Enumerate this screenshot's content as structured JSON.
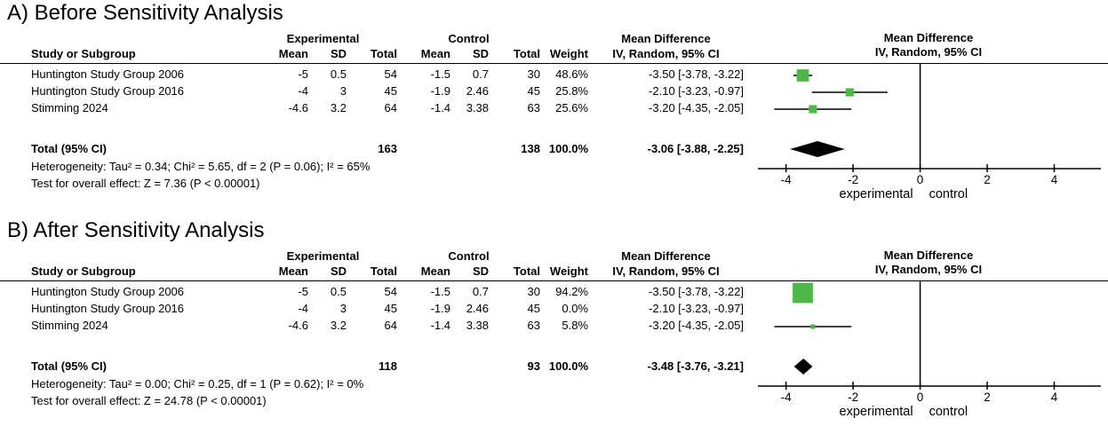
{
  "figure": {
    "panels": [
      {
        "title": "A) Before Sensitivity Analysis",
        "table": {
          "group_headers": {
            "experimental": "Experimental",
            "control": "Control",
            "mean_difference": "Mean Difference"
          },
          "columns": {
            "study": "Study or Subgroup",
            "mean": "Mean",
            "sd": "SD",
            "total": "Total",
            "mean2": "Mean",
            "sd2": "SD",
            "total2": "Total",
            "weight": "Weight",
            "ci": "IV, Random, 95% CI"
          },
          "rows": [
            {
              "study": "Huntington Study Group 2006",
              "exp_mean": "-5",
              "exp_sd": "0.5",
              "exp_total": "54",
              "ctl_mean": "-1.5",
              "ctl_sd": "0.7",
              "ctl_total": "30",
              "weight": "48.6%",
              "ci": "-3.50 [-3.78, -3.22]"
            },
            {
              "study": "Huntington Study Group 2016",
              "exp_mean": "-4",
              "exp_sd": "3",
              "exp_total": "45",
              "ctl_mean": "-1.9",
              "ctl_sd": "2.46",
              "ctl_total": "45",
              "weight": "25.8%",
              "ci": "-2.10 [-3.23, -0.97]"
            },
            {
              "study": "Stimming 2024",
              "exp_mean": "-4.6",
              "exp_sd": "3.2",
              "exp_total": "64",
              "ctl_mean": "-1.4",
              "ctl_sd": "3.38",
              "ctl_total": "63",
              "weight": "25.6%",
              "ci": "-3.20 [-4.35, -2.05]"
            }
          ],
          "total_row": {
            "label": "Total (95% CI)",
            "exp_total": "163",
            "ctl_total": "138",
            "weight": "100.0%",
            "ci": "-3.06 [-3.88, -2.25]"
          },
          "heterogeneity": "Heterogeneity: Tau² = 0.34; Chi² = 5.65, df = 2 (P = 0.06); I² = 65%",
          "overall_effect": "Test for overall effect: Z = 7.36 (P < 0.00001)"
        },
        "plot_header": {
          "line1": "Mean Difference",
          "line2": "IV, Random, 95% CI"
        }
      },
      {
        "title": "B) After Sensitivity Analysis",
        "table": {
          "group_headers": {
            "experimental": "Experimental",
            "control": "Control",
            "mean_difference": "Mean Difference"
          },
          "columns": {
            "study": "Study or Subgroup",
            "mean": "Mean",
            "sd": "SD",
            "total": "Total",
            "mean2": "Mean",
            "sd2": "SD",
            "total2": "Total",
            "weight": "Weight",
            "ci": "IV, Random, 95% CI"
          },
          "rows": [
            {
              "study": "Huntington Study Group 2006",
              "exp_mean": "-5",
              "exp_sd": "0.5",
              "exp_total": "54",
              "ctl_mean": "-1.5",
              "ctl_sd": "0.7",
              "ctl_total": "30",
              "weight": "94.2%",
              "ci": "-3.50 [-3.78, -3.22]"
            },
            {
              "study": "Huntington Study Group 2016",
              "exp_mean": "-4",
              "exp_sd": "3",
              "exp_total": "45",
              "ctl_mean": "-1.9",
              "ctl_sd": "2.46",
              "ctl_total": "45",
              "weight": "0.0%",
              "ci": "-2.10 [-3.23, -0.97]"
            },
            {
              "study": "Stimming 2024",
              "exp_mean": "-4.6",
              "exp_sd": "3.2",
              "exp_total": "64",
              "ctl_mean": "-1.4",
              "ctl_sd": "3.38",
              "ctl_total": "63",
              "weight": "5.8%",
              "ci": "-3.20 [-4.35, -2.05]"
            }
          ],
          "total_row": {
            "label": "Total (95% CI)",
            "exp_total": "118",
            "ctl_total": "93",
            "weight": "100.0%",
            "ci": "-3.48 [-3.76, -3.21]"
          },
          "heterogeneity": "Heterogeneity: Tau² = 0.00; Chi² = 0.25, df = 1 (P = 0.62); I² = 0%",
          "overall_effect": "Test for overall effect: Z = 24.78 (P < 0.00001)"
        },
        "plot_header": {
          "line1": "Mean Difference",
          "line2": "IV, Random, 95% CI"
        }
      }
    ]
  },
  "chart_data": [
    {
      "type": "forest",
      "panel": "A) Before Sensitivity Analysis",
      "effect_measure": "Mean Difference, IV, Random, 95% CI",
      "xticks": [
        -4,
        -2,
        0,
        2,
        4
      ],
      "xlim": [
        -5.05,
        5.55
      ],
      "axis_labels": [
        "experimental",
        "control"
      ],
      "marker_color": "#4db848",
      "diamond_color": "#000000",
      "studies": [
        {
          "name": "Huntington Study Group 2006",
          "est": -3.5,
          "lo": -3.78,
          "hi": -3.22,
          "weight": 48.6
        },
        {
          "name": "Huntington Study Group 2016",
          "est": -2.1,
          "lo": -3.23,
          "hi": -0.97,
          "weight": 25.8
        },
        {
          "name": "Stimming 2024",
          "est": -3.2,
          "lo": -4.35,
          "hi": -2.05,
          "weight": 25.6
        }
      ],
      "total": {
        "est": -3.06,
        "lo": -3.88,
        "hi": -2.25
      }
    },
    {
      "type": "forest",
      "panel": "B) After Sensitivity Analysis",
      "effect_measure": "Mean Difference, IV, Random, 95% CI",
      "xticks": [
        -4,
        -2,
        0,
        2,
        4
      ],
      "xlim": [
        -5.05,
        5.55
      ],
      "axis_labels": [
        "experimental",
        "control"
      ],
      "marker_color": "#4db848",
      "diamond_color": "#000000",
      "studies": [
        {
          "name": "Huntington Study Group 2006",
          "est": -3.5,
          "lo": -3.78,
          "hi": -3.22,
          "weight": 94.2
        },
        {
          "name": "Huntington Study Group 2016",
          "est": -2.1,
          "lo": -3.23,
          "hi": -0.97,
          "weight": 0.0
        },
        {
          "name": "Stimming 2024",
          "est": -3.2,
          "lo": -4.35,
          "hi": -2.05,
          "weight": 5.8
        }
      ],
      "total": {
        "est": -3.48,
        "lo": -3.76,
        "hi": -3.21
      }
    }
  ]
}
